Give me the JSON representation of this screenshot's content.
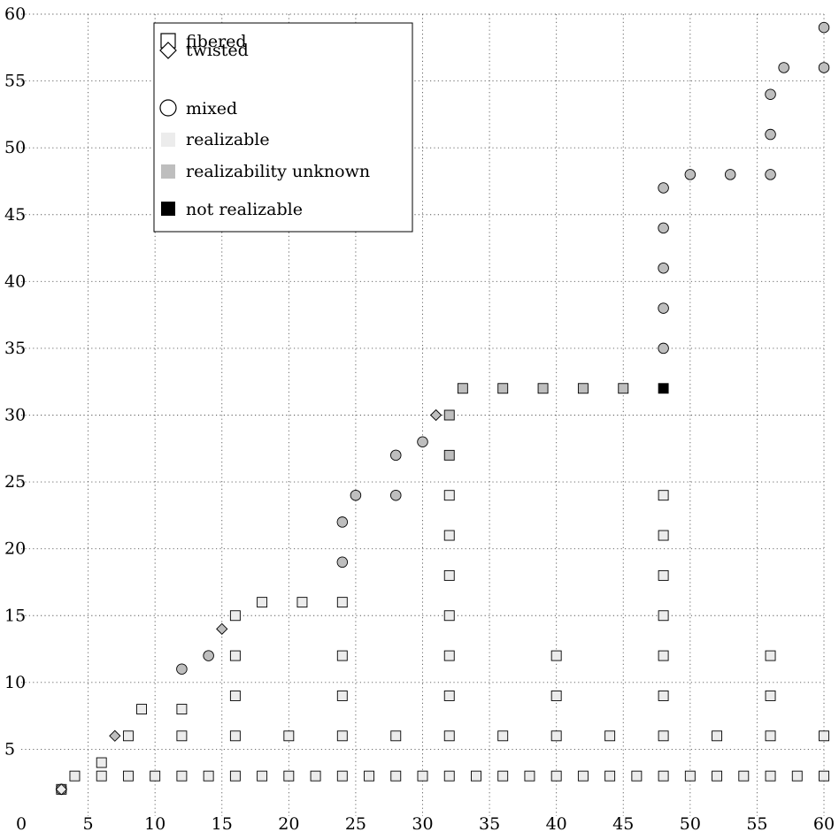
{
  "chart_data": {
    "type": "scatter",
    "title": "",
    "xlabel": "",
    "ylabel": "",
    "xlim": [
      0,
      60
    ],
    "ylim": [
      0,
      60
    ],
    "xticks": [
      0,
      5,
      10,
      15,
      20,
      25,
      30,
      35,
      40,
      45,
      50,
      55,
      60
    ],
    "yticks": [
      5,
      10,
      15,
      20,
      25,
      30,
      35,
      40,
      45,
      50,
      55,
      60
    ],
    "grid": true,
    "legend_position": "top-left",
    "legend": [
      {
        "label": "fibered",
        "marker": "square",
        "fill": "#ffffff"
      },
      {
        "label": "twisted",
        "marker": "diamond",
        "fill": "#ffffff"
      },
      {
        "label": "mixed",
        "marker": "circle",
        "fill": "#ffffff"
      },
      {
        "label": "realizable",
        "marker": "swatch",
        "fill": "#ececec"
      },
      {
        "label": "realizability unknown",
        "marker": "swatch",
        "fill": "#bebebe"
      },
      {
        "label": "not realizable",
        "marker": "swatch",
        "fill": "#000000"
      }
    ],
    "colors": {
      "realizable": "#ececec",
      "unknown": "#bebebe",
      "not_realizable": "#000000"
    },
    "series": [
      {
        "name": "fibered",
        "marker": "square",
        "points": [
          [
            3,
            2,
            "realizable"
          ],
          [
            4,
            3,
            "realizable"
          ],
          [
            6,
            3,
            "realizable"
          ],
          [
            8,
            3,
            "realizable"
          ],
          [
            10,
            3,
            "realizable"
          ],
          [
            12,
            3,
            "realizable"
          ],
          [
            14,
            3,
            "realizable"
          ],
          [
            16,
            3,
            "realizable"
          ],
          [
            18,
            3,
            "realizable"
          ],
          [
            20,
            3,
            "realizable"
          ],
          [
            22,
            3,
            "realizable"
          ],
          [
            24,
            3,
            "realizable"
          ],
          [
            26,
            3,
            "realizable"
          ],
          [
            28,
            3,
            "realizable"
          ],
          [
            30,
            3,
            "realizable"
          ],
          [
            32,
            3,
            "realizable"
          ],
          [
            34,
            3,
            "realizable"
          ],
          [
            36,
            3,
            "realizable"
          ],
          [
            38,
            3,
            "realizable"
          ],
          [
            40,
            3,
            "realizable"
          ],
          [
            42,
            3,
            "realizable"
          ],
          [
            44,
            3,
            "realizable"
          ],
          [
            46,
            3,
            "realizable"
          ],
          [
            48,
            3,
            "realizable"
          ],
          [
            50,
            3,
            "realizable"
          ],
          [
            52,
            3,
            "realizable"
          ],
          [
            54,
            3,
            "realizable"
          ],
          [
            56,
            3,
            "realizable"
          ],
          [
            58,
            3,
            "realizable"
          ],
          [
            60,
            3,
            "realizable"
          ],
          [
            6,
            4,
            "realizable"
          ],
          [
            8,
            6,
            "realizable"
          ],
          [
            12,
            6,
            "realizable"
          ],
          [
            16,
            6,
            "realizable"
          ],
          [
            20,
            6,
            "realizable"
          ],
          [
            24,
            6,
            "realizable"
          ],
          [
            28,
            6,
            "realizable"
          ],
          [
            32,
            6,
            "realizable"
          ],
          [
            36,
            6,
            "realizable"
          ],
          [
            40,
            6,
            "realizable"
          ],
          [
            44,
            6,
            "realizable"
          ],
          [
            48,
            6,
            "realizable"
          ],
          [
            52,
            6,
            "realizable"
          ],
          [
            56,
            6,
            "realizable"
          ],
          [
            60,
            6,
            "realizable"
          ],
          [
            9,
            8,
            "realizable"
          ],
          [
            12,
            8,
            "realizable"
          ],
          [
            16,
            9,
            "realizable"
          ],
          [
            24,
            9,
            "realizable"
          ],
          [
            32,
            9,
            "realizable"
          ],
          [
            40,
            9,
            "realizable"
          ],
          [
            48,
            9,
            "realizable"
          ],
          [
            56,
            9,
            "realizable"
          ],
          [
            16,
            12,
            "realizable"
          ],
          [
            24,
            12,
            "realizable"
          ],
          [
            32,
            12,
            "realizable"
          ],
          [
            40,
            12,
            "realizable"
          ],
          [
            48,
            12,
            "realizable"
          ],
          [
            56,
            12,
            "realizable"
          ],
          [
            16,
            15,
            "realizable"
          ],
          [
            32,
            15,
            "realizable"
          ],
          [
            48,
            15,
            "realizable"
          ],
          [
            18,
            16,
            "realizable"
          ],
          [
            21,
            16,
            "realizable"
          ],
          [
            24,
            16,
            "realizable"
          ],
          [
            32,
            18,
            "realizable"
          ],
          [
            48,
            18,
            "realizable"
          ],
          [
            32,
            21,
            "realizable"
          ],
          [
            48,
            21,
            "realizable"
          ],
          [
            32,
            24,
            "realizable"
          ],
          [
            48,
            24,
            "realizable"
          ],
          [
            32,
            27,
            "unknown"
          ],
          [
            32,
            30,
            "unknown"
          ],
          [
            33,
            32,
            "unknown"
          ],
          [
            36,
            32,
            "unknown"
          ],
          [
            39,
            32,
            "unknown"
          ],
          [
            42,
            32,
            "unknown"
          ],
          [
            45,
            32,
            "unknown"
          ],
          [
            48,
            32,
            "not_realizable"
          ]
        ]
      },
      {
        "name": "twisted",
        "marker": "diamond",
        "points": [
          [
            3,
            2,
            "realizable"
          ],
          [
            7,
            6,
            "unknown"
          ],
          [
            15,
            14,
            "unknown"
          ],
          [
            31,
            30,
            "unknown"
          ]
        ]
      },
      {
        "name": "mixed",
        "marker": "circle",
        "points": [
          [
            3,
            2,
            "realizable"
          ],
          [
            12,
            11,
            "unknown"
          ],
          [
            14,
            12,
            "unknown"
          ],
          [
            24,
            19,
            "unknown"
          ],
          [
            24,
            22,
            "unknown"
          ],
          [
            25,
            24,
            "unknown"
          ],
          [
            28,
            24,
            "unknown"
          ],
          [
            28,
            27,
            "unknown"
          ],
          [
            30,
            28,
            "unknown"
          ],
          [
            48,
            35,
            "unknown"
          ],
          [
            48,
            38,
            "unknown"
          ],
          [
            48,
            41,
            "unknown"
          ],
          [
            48,
            44,
            "unknown"
          ],
          [
            48,
            47,
            "unknown"
          ],
          [
            50,
            48,
            "unknown"
          ],
          [
            53,
            48,
            "unknown"
          ],
          [
            56,
            48,
            "unknown"
          ],
          [
            56,
            51,
            "unknown"
          ],
          [
            56,
            54,
            "unknown"
          ],
          [
            57,
            56,
            "unknown"
          ],
          [
            60,
            56,
            "unknown"
          ],
          [
            60,
            59,
            "unknown"
          ]
        ]
      }
    ]
  }
}
